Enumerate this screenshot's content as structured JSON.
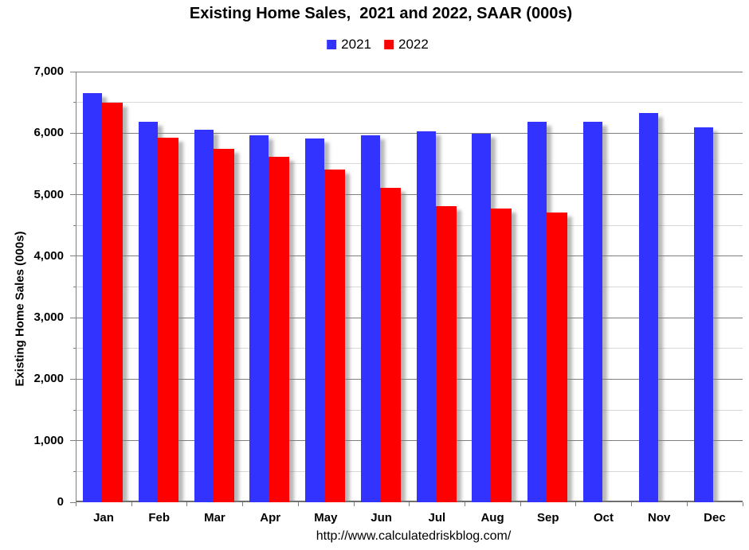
{
  "title": "Existing Home Sales,  2021 and 2022, SAAR (000s)",
  "legend": {
    "items": [
      {
        "label": "2021",
        "color": "#3333ff"
      },
      {
        "label": "2022",
        "color": "#ff0000"
      }
    ]
  },
  "footer": {
    "url": "http://www.calculatedriskblog.com/"
  },
  "chart_data": {
    "type": "bar",
    "title": "Existing Home Sales,  2021 and 2022, SAAR (000s)",
    "xlabel": "",
    "ylabel": "Existing Home Sales (000s)",
    "categories": [
      "Jan",
      "Feb",
      "Mar",
      "Apr",
      "May",
      "Jun",
      "Jul",
      "Aug",
      "Sep",
      "Oct",
      "Nov",
      "Dec"
    ],
    "series": [
      {
        "name": "2021",
        "color": "#3333ff",
        "values": [
          6650,
          6180,
          6050,
          5960,
          5910,
          5960,
          6030,
          5990,
          6180,
          6190,
          6330,
          6090
        ]
      },
      {
        "name": "2022",
        "color": "#ff0000",
        "values": [
          6490,
          5930,
          5750,
          5610,
          5410,
          5110,
          4810,
          4780,
          4710,
          null,
          null,
          null
        ]
      }
    ],
    "ylim": [
      0,
      7000
    ],
    "y_major_step": 1000,
    "y_minor_step": 500,
    "y_tick_labels": [
      "0",
      "1,000",
      "2,000",
      "3,000",
      "4,000",
      "5,000",
      "6,000",
      "7,000"
    ],
    "grid": true,
    "legend_position": "top-center",
    "colors": {
      "major_gridline": "#7f7f7f",
      "minor_gridline": "#d8d8d8",
      "axis": "#7f7f7f",
      "text": "#000000"
    }
  }
}
